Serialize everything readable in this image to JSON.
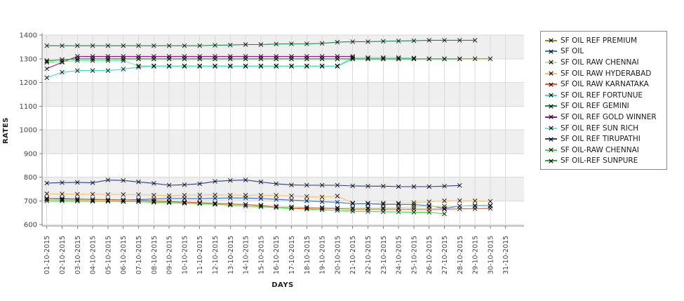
{
  "chart_data": {
    "type": "line",
    "title": "",
    "xlabel": "DAYS",
    "ylabel": "RATES",
    "ylim": [
      600,
      1400
    ],
    "ytick_step": 100,
    "y_tick_labels": [
      "600",
      "700",
      "800",
      "900",
      "1000",
      "1100",
      "1200",
      "1300",
      "1400"
    ],
    "grid": "on",
    "band_fill_odd": "#efefef",
    "band_fill_even": "#ffffff",
    "gridline_color": "#d9d9d9",
    "axis_color": "#808080",
    "marker": "x",
    "marker_color": "#111111",
    "legend_position": "right",
    "x_labels": [
      "01-10-2015",
      "02-10-2015",
      "03-10-2015",
      "04-10-2015",
      "05-10-2015",
      "06-10-2015",
      "07-10-2015",
      "08-10-2015",
      "09-10-2015",
      "10-10-2015",
      "11-10-2015",
      "12-10-2015",
      "13-10-2015",
      "14-10-2015",
      "15-10-2015",
      "16-10-2015",
      "17-10-2015",
      "18-10-2015",
      "19-10-2015",
      "20-10-2015",
      "21-10-2015",
      "22-10-2015",
      "23-10-2015",
      "24-10-2015",
      "25-10-2015",
      "26-10-2015",
      "27-10-2015",
      "28-10-2015",
      "29-10-2015",
      "30-10-2015",
      "31-10-2015"
    ],
    "series": [
      {
        "name": "SF OIL REF PREMIUM",
        "color": "#8f9400",
        "values": [
          1290,
          1296,
          1300,
          1300,
          1300,
          1300,
          1300,
          1300,
          1300,
          1300,
          1300,
          1300,
          1300,
          1300,
          1300,
          1300,
          1300,
          1300,
          1300,
          1300,
          1300,
          1300,
          1300,
          1300,
          1300,
          1300,
          1300,
          1300,
          1300,
          1300
        ]
      },
      {
        "name": "SF OIL",
        "color": "#2e75e6",
        "values": [
          710,
          710,
          708,
          706,
          705,
          704,
          705,
          708,
          710,
          710,
          709,
          711,
          712,
          712,
          710,
          706,
          703,
          700,
          696,
          694,
          688,
          687,
          685,
          685,
          684,
          680,
          668,
          678,
          680,
          680
        ]
      },
      {
        "name": "SF OIL RAW CHENNAI",
        "color": "#c9d79c",
        "values": [
          706,
          704,
          702,
          701,
          700,
          699,
          698,
          696,
          694,
          692,
          690,
          688,
          686,
          685,
          682,
          678,
          675,
          673,
          672,
          671,
          670,
          670,
          670,
          672,
          674,
          676,
          677,
          678,
          678,
          678
        ]
      },
      {
        "name": "SF OIL RAW HYDERABAD",
        "color": "#f9c06a",
        "values": [
          730,
          729,
          728,
          728,
          727,
          727,
          726,
          724,
          722,
          724,
          725,
          725,
          724,
          724,
          724,
          723,
          721,
          718,
          716,
          720,
          691,
          690,
          690,
          690,
          692,
          696,
          700,
          701,
          700,
          698
        ]
      },
      {
        "name": "SF OIL RAW KARNATAKA",
        "color": "#f35325",
        "values": [
          710,
          708,
          707,
          706,
          705,
          704,
          703,
          700,
          697,
          695,
          692,
          690,
          687,
          684,
          680,
          673,
          670,
          669,
          668,
          667,
          665,
          665,
          665,
          665,
          665,
          665,
          665,
          666,
          667,
          668
        ]
      },
      {
        "name": "SF OIL REF FORTUNUE",
        "color": "#3ed9c6",
        "values": [
          1220,
          1243,
          1250,
          1250,
          1250,
          1256,
          1265,
          1268,
          1268,
          1268,
          1268,
          1268,
          1268,
          1268,
          1268,
          1268,
          1268,
          1268,
          1268,
          1268,
          1299,
          1299,
          1299,
          1299
        ]
      },
      {
        "name": "SF OIL REF GEMINI",
        "color": "#17864f",
        "values": [
          1355,
          1355,
          1355,
          1355,
          1355,
          1355,
          1355,
          1355,
          1355,
          1355,
          1355,
          1357,
          1358,
          1360,
          1360,
          1362,
          1363,
          1363,
          1365,
          1370,
          1372,
          1372,
          1374,
          1375,
          1376,
          1378,
          1378,
          1378,
          1378
        ]
      },
      {
        "name": "SF OIL REF GOLD WINNER",
        "color": "#9e1190",
        "values": [
          1258,
          1285,
          1310,
          1310,
          1310,
          1310,
          1310,
          1310,
          1310,
          1310,
          1310,
          1310,
          1310,
          1310,
          1310,
          1310,
          1310,
          1310,
          1310,
          1310,
          1310
        ]
      },
      {
        "name": "SF OIL REF SUN RICH",
        "color": "#74e8b6",
        "values": [
          1285,
          1288,
          1292,
          1292,
          1292,
          1292,
          1270,
          1270,
          1270,
          1270,
          1270,
          1270,
          1270,
          1270,
          1270,
          1270,
          1270,
          1270,
          1270,
          1270,
          1305,
          1305,
          1305,
          1305,
          1303
        ]
      },
      {
        "name": "SF OIL REF TIRUPATHI",
        "color": "#2c3e8f",
        "values": [
          775,
          777,
          778,
          776,
          788,
          786,
          780,
          774,
          766,
          768,
          772,
          782,
          786,
          788,
          780,
          772,
          767,
          766,
          766,
          766,
          763,
          762,
          762,
          760,
          760,
          760,
          762,
          765
        ]
      },
      {
        "name": "SF OIL-RAW CHENNAI",
        "color": "#3fe23f",
        "values": [
          700,
          700,
          699,
          698,
          698,
          697,
          696,
          694,
          692,
          690,
          688,
          685,
          682,
          678,
          675,
          672,
          668,
          665,
          662,
          660,
          656,
          655,
          654,
          653,
          652,
          652,
          645
        ]
      },
      {
        "name": "SF OIL-REF SUNPURE",
        "color": "#2fa832",
        "values": [
          1292,
          1296,
          1299,
          1299,
          1299,
          1299,
          1299,
          1299,
          1299,
          1299,
          1299,
          1299,
          1299,
          1299,
          1299,
          1299,
          1299,
          1299,
          1299,
          1299,
          1299,
          1299,
          1299,
          1299,
          1299,
          1299,
          1299,
          1299
        ]
      }
    ]
  }
}
